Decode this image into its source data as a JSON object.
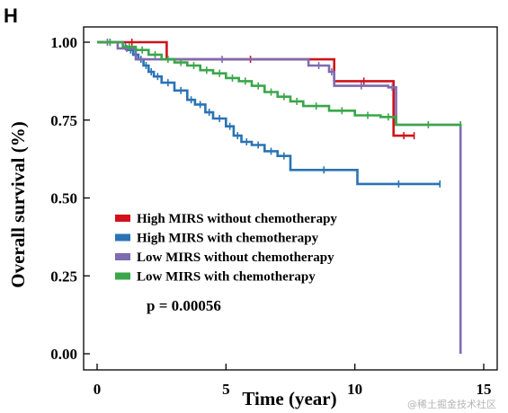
{
  "panel_label": "H",
  "watermark": "@稀土掘金技术社区",
  "colors": {
    "series": [
      "#d0121b",
      "#2a73b5",
      "#7e6bb0",
      "#3aa64a"
    ]
  },
  "chart_data": {
    "type": "line",
    "title": "",
    "xlabel": "Time (year)",
    "ylabel": "Overall survival (%)",
    "xlim": [
      0,
      15
    ],
    "ylim": [
      0,
      1
    ],
    "xticks": [
      0,
      5,
      10,
      15
    ],
    "yticks": [
      "0.00",
      "0.25",
      "0.50",
      "0.75",
      "1.00"
    ],
    "legend_position": "center-left",
    "annotation": "p = 0.00056",
    "grid": false,
    "series": [
      {
        "name": "High MIRS without chemotherapy",
        "x": [
          0,
          2.7,
          9.2,
          11.5,
          12.3
        ],
        "y": [
          1.0,
          0.945,
          0.875,
          0.7,
          0.7
        ]
      },
      {
        "name": "High MIRS with chemotherapy",
        "x": [
          0,
          1.0,
          1.2,
          1.4,
          1.6,
          1.8,
          2.0,
          2.2,
          2.5,
          3.0,
          3.5,
          3.8,
          4.2,
          4.5,
          5.0,
          5.3,
          5.6,
          6.0,
          6.5,
          7.0,
          7.5,
          10.1,
          13.3
        ],
        "y": [
          1.0,
          0.985,
          0.975,
          0.96,
          0.945,
          0.925,
          0.905,
          0.89,
          0.87,
          0.845,
          0.815,
          0.8,
          0.775,
          0.755,
          0.73,
          0.7,
          0.68,
          0.67,
          0.65,
          0.635,
          0.59,
          0.545,
          0.545
        ]
      },
      {
        "name": "Low MIRS without chemotherapy",
        "x": [
          0,
          0.8,
          1.5,
          8.2,
          9.0,
          9.2,
          11.3,
          11.6,
          14.1
        ],
        "y": [
          1.0,
          0.98,
          0.945,
          0.925,
          0.905,
          0.86,
          0.855,
          0.735,
          0.0
        ]
      },
      {
        "name": "Low MIRS with chemotherapy",
        "x": [
          0,
          1.0,
          1.5,
          2.0,
          2.5,
          3.0,
          3.5,
          4.0,
          4.5,
          5.0,
          5.5,
          6.0,
          6.5,
          7.0,
          7.5,
          8.0,
          9.0,
          10.0,
          11.0,
          11.6,
          14.1
        ],
        "y": [
          1.0,
          0.985,
          0.975,
          0.96,
          0.945,
          0.935,
          0.925,
          0.91,
          0.9,
          0.885,
          0.875,
          0.86,
          0.84,
          0.825,
          0.81,
          0.795,
          0.78,
          0.765,
          0.76,
          0.735,
          0.735
        ]
      }
    ]
  }
}
